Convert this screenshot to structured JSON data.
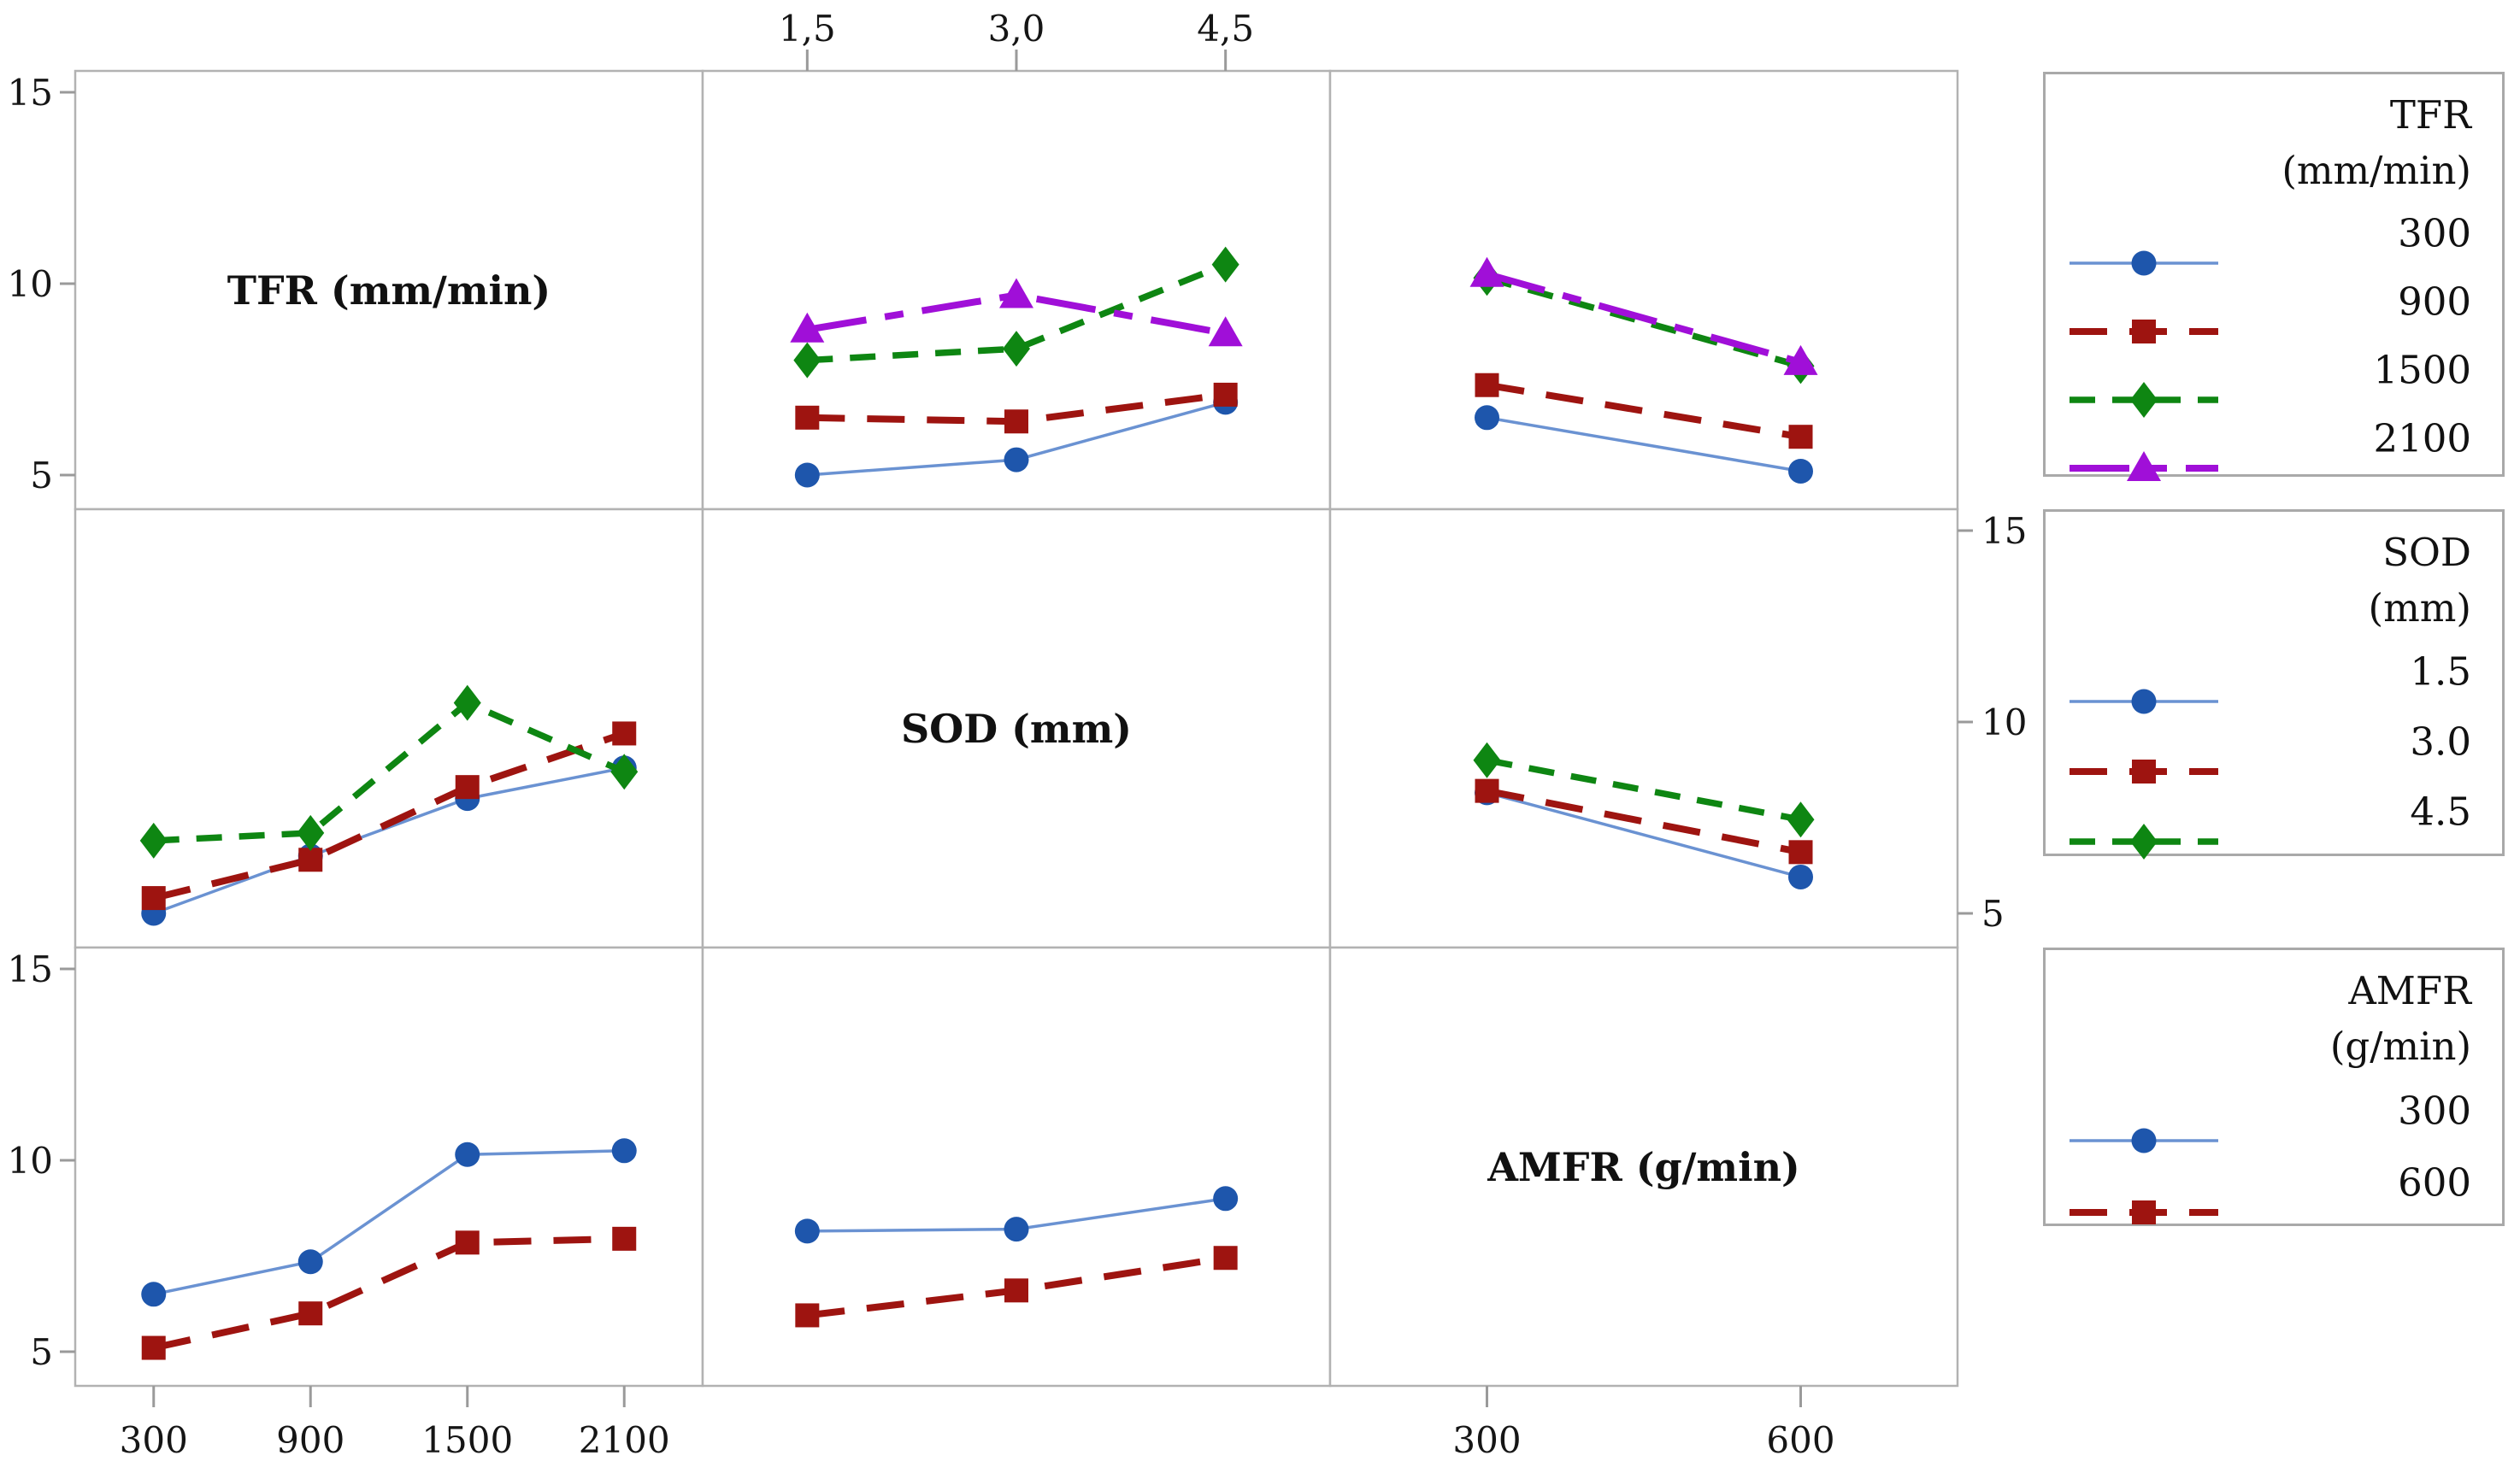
{
  "figure": {
    "kind": "interaction-plot-matrix",
    "background": "#ffffff"
  },
  "colors": {
    "grid_border": "#b2b2b2",
    "legend_border": "#a9a9a9",
    "tick_stub": "#9a9a9a",
    "text": "#151515",
    "blue_line": "#6A92D2",
    "blue_marker": "#1E56AC",
    "red": "#9E1410",
    "green": "#0E8612",
    "purple": "#A00FD8"
  },
  "panel_labels": [
    "TFR (mm/min)",
    "SOD (mm)",
    "AMFR (g/min)"
  ],
  "axes": {
    "y_ticks": [
      "15",
      "10",
      "5"
    ],
    "y_tick_values": [
      15,
      10,
      5
    ],
    "top_col2_labels": [
      "1,5",
      "3,0",
      "4,5"
    ],
    "bottom_col1_labels": [
      "300",
      "900",
      "1500",
      "2100"
    ],
    "bottom_col3_labels": [
      "300",
      "600"
    ],
    "left_rows_with_ticks": [
      0,
      2
    ],
    "right_rows_with_ticks": [
      1
    ]
  },
  "series_styles": [
    {
      "name": "level-1",
      "shape": "circle",
      "line": "#6A92D2",
      "marker": "#1E56AC",
      "width": 3.5,
      "dash": ""
    },
    {
      "name": "level-2",
      "shape": "square",
      "line": "#9E1410",
      "marker": "#9E1410",
      "width": 8,
      "dash": "44 26"
    },
    {
      "name": "level-3",
      "shape": "diamond",
      "line": "#0E8612",
      "marker": "#0E8612",
      "width": 7.5,
      "dash": "30 20"
    },
    {
      "name": "level-4",
      "shape": "triangle",
      "line": "#A00FD8",
      "marker": "#A00FD8",
      "width": 8,
      "dash": "70 22 22 22"
    }
  ],
  "legends": [
    {
      "title": "TFR",
      "unit": "(mm/min)",
      "items": [
        {
          "label": "300",
          "style": 0
        },
        {
          "label": "900",
          "style": 1
        },
        {
          "label": "1500",
          "style": 2
        },
        {
          "label": "2100",
          "style": 3
        }
      ]
    },
    {
      "title": "SOD",
      "unit": "(mm)",
      "items": [
        {
          "label": "1.5",
          "style": 0
        },
        {
          "label": "3.0",
          "style": 1
        },
        {
          "label": "4.5",
          "style": 2
        }
      ]
    },
    {
      "title": "AMFR",
      "unit": "(g/min)",
      "items": [
        {
          "label": "300",
          "style": 0
        },
        {
          "label": "600",
          "style": 1
        }
      ]
    }
  ],
  "chart_data": {
    "type": "line",
    "subtype": "interaction-matrix-3x3",
    "title": "",
    "ylabel": "",
    "y_axis_range": [
      4,
      16
    ],
    "y_axis_ticks": [
      5,
      10,
      15
    ],
    "grid": "panel-borders-only",
    "factors": {
      "TFR": {
        "label": "TFR (mm/min)",
        "levels": [
          "300",
          "900",
          "1500",
          "2100"
        ]
      },
      "SOD": {
        "label": "SOD (mm)",
        "levels": [
          "1.5",
          "3.0",
          "4.5"
        ]
      },
      "AMFR": {
        "label": "AMFR (g/min)",
        "levels": [
          "300",
          "600"
        ]
      }
    },
    "tables": {
      "tfr_sod": {
        "row_factor": "TFR",
        "col_factor": "SOD",
        "values": [
          [
            5.0,
            5.4,
            6.9
          ],
          [
            6.5,
            6.4,
            7.1
          ],
          [
            8.0,
            8.3,
            10.5
          ],
          [
            8.8,
            9.7,
            8.7
          ]
        ]
      },
      "tfr_amfr": {
        "row_factor": "TFR",
        "col_factor": "AMFR",
        "values": [
          [
            6.5,
            5.1
          ],
          [
            7.35,
            6.0
          ],
          [
            10.15,
            7.85
          ],
          [
            10.25,
            7.95
          ]
        ]
      },
      "sod_amfr": {
        "row_factor": "SOD",
        "col_factor": "AMFR",
        "values": [
          [
            8.15,
            5.95
          ],
          [
            8.2,
            6.6
          ],
          [
            9.0,
            7.45
          ]
        ]
      }
    },
    "cells": [
      {
        "row": 0,
        "col": 1,
        "table": "tfr_sod",
        "transpose": false
      },
      {
        "row": 0,
        "col": 2,
        "table": "tfr_amfr",
        "transpose": false
      },
      {
        "row": 1,
        "col": 0,
        "table": "tfr_sod",
        "transpose": true
      },
      {
        "row": 1,
        "col": 2,
        "table": "sod_amfr",
        "transpose": false
      },
      {
        "row": 2,
        "col": 0,
        "table": "tfr_amfr",
        "transpose": true
      },
      {
        "row": 2,
        "col": 1,
        "table": "sod_amfr",
        "transpose": true
      }
    ],
    "legend_position": "right"
  }
}
